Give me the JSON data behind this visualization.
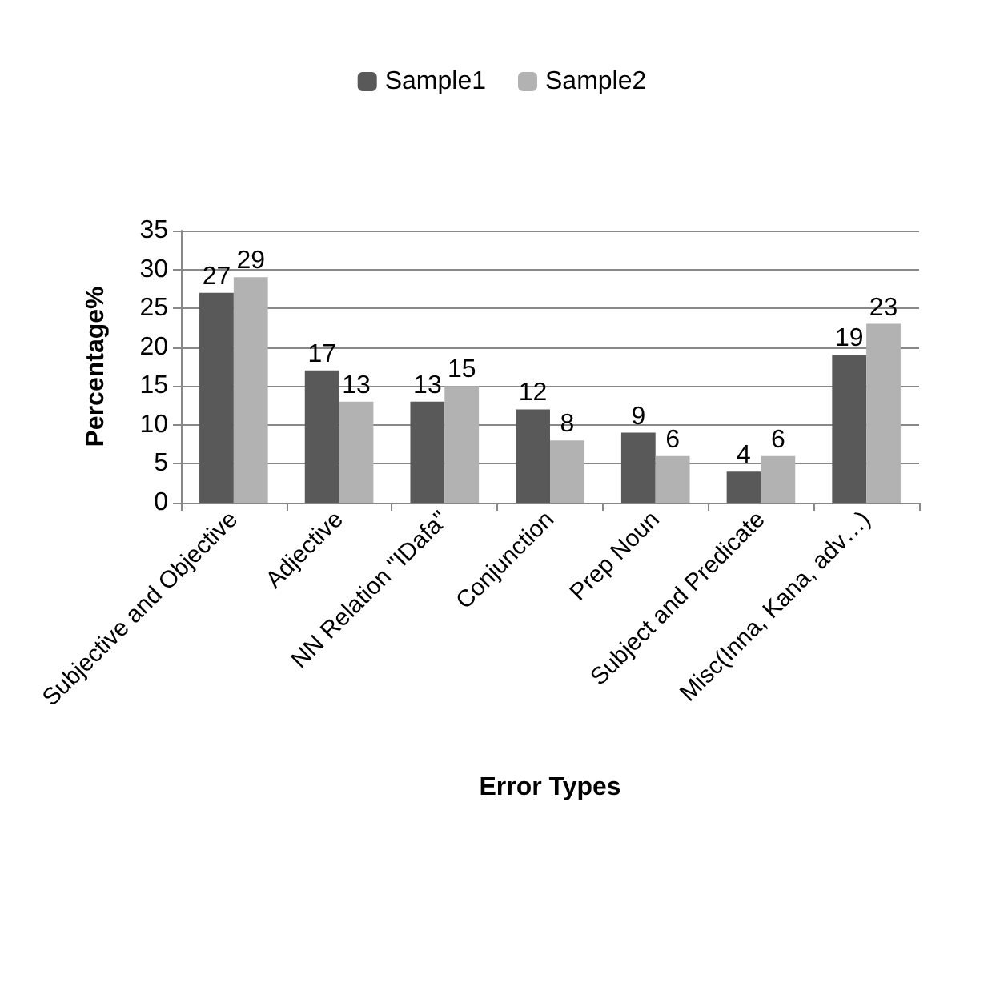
{
  "chart_data": {
    "type": "bar",
    "xlabel": "Error Types",
    "ylabel": "Percentage%",
    "categories": [
      "Subjective and Objective",
      "Adjective",
      "NN Relation \"IDafa\"",
      "Conjunction",
      "Prep Noun",
      "Subject and Predicate",
      "Misc(Inna, Kana, adv…)"
    ],
    "series": [
      {
        "name": "Sample1",
        "color": "#595959",
        "values": [
          27,
          17,
          13,
          12,
          9,
          4,
          19
        ]
      },
      {
        "name": "Sample2",
        "color": "#b2b2b2",
        "values": [
          29,
          13,
          15,
          8,
          6,
          6,
          23
        ]
      }
    ],
    "ylim": [
      0,
      35
    ],
    "yticks": [
      0,
      5,
      10,
      15,
      20,
      25,
      30,
      35
    ],
    "grid": "y",
    "legend": "top",
    "data_labels": true
  }
}
